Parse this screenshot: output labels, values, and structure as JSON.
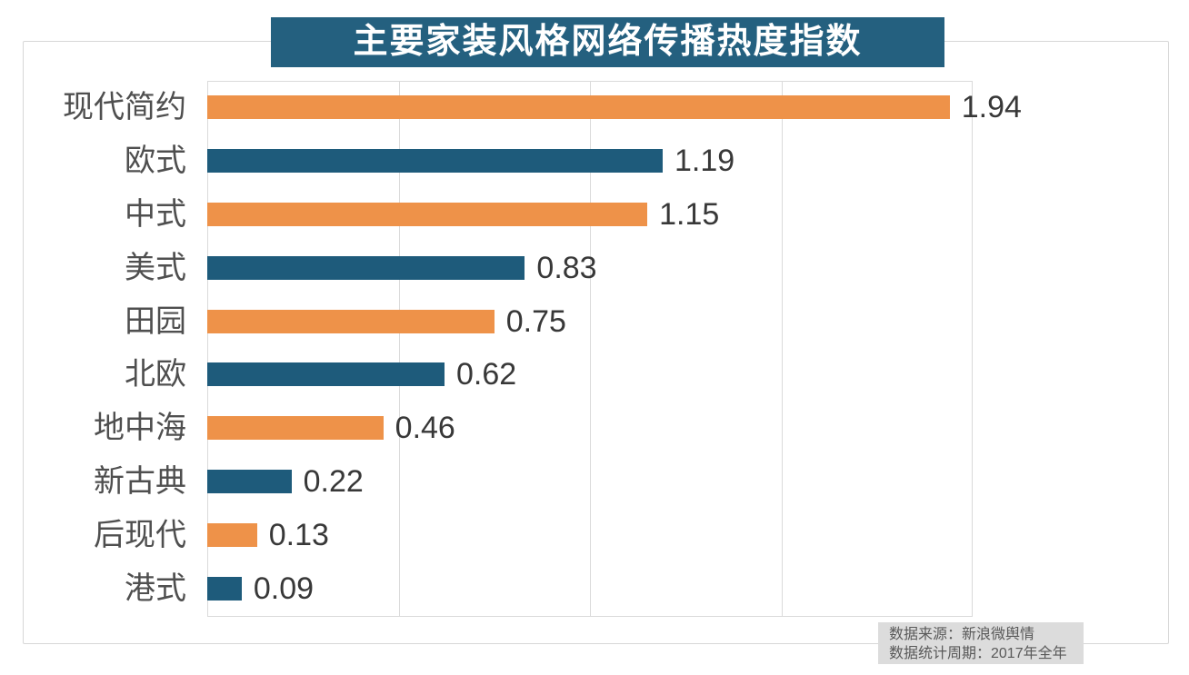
{
  "title": "主要家装风格网络传播热度指数",
  "footer": {
    "line1": "数据来源：新浪微舆情",
    "line2": "数据统计周期：2017年全年"
  },
  "colors": {
    "banner_bg": "#24607F",
    "bar_orange": "#EE9249",
    "bar_blue": "#1E5B7B",
    "grid": "#DADADA",
    "frame_border": "#D7D7D7",
    "label_text": "#4F4F4F",
    "value_text": "#383838",
    "footer_bg": "#DCDCDC",
    "footer_text": "#595959"
  },
  "chart_data": {
    "type": "bar",
    "orientation": "horizontal",
    "title": "主要家装风格网络传播热度指数",
    "categories": [
      "现代简约",
      "欧式",
      "中式",
      "美式",
      "田园",
      "北欧",
      "地中海",
      "新古典",
      "后现代",
      "港式"
    ],
    "values": [
      1.94,
      1.19,
      1.15,
      0.83,
      0.75,
      0.62,
      0.46,
      0.22,
      0.13,
      0.09
    ],
    "value_labels": [
      "1.94",
      "1.19",
      "1.15",
      "0.83",
      "0.75",
      "0.62",
      "0.46",
      "0.22",
      "0.13",
      "0.09"
    ],
    "bar_colors": [
      "#EE9249",
      "#1E5B7B",
      "#EE9249",
      "#1E5B7B",
      "#EE9249",
      "#1E5B7B",
      "#EE9249",
      "#1E5B7B",
      "#EE9249",
      "#1E5B7B"
    ],
    "xlim": [
      0,
      2.5
    ],
    "gridline_values": [
      0,
      0.5,
      1.0,
      1.5,
      2.0
    ],
    "grid": true,
    "legend": false,
    "data_labels": "outside-end",
    "source_note": "数据来源：新浪微舆情；数据统计周期：2017年全年"
  }
}
